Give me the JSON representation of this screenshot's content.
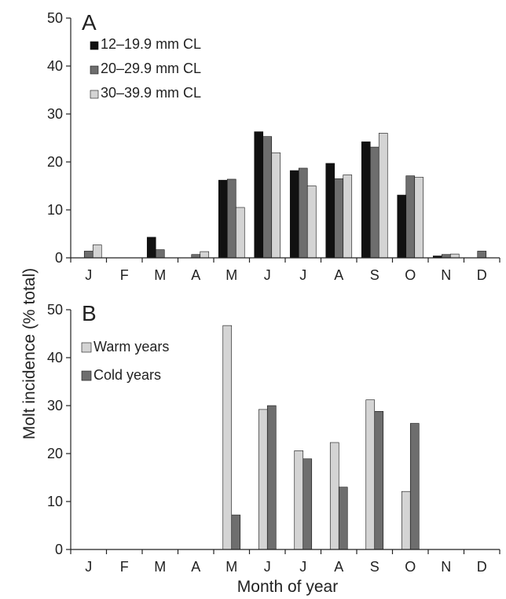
{
  "chart_data": [
    {
      "panel": "A",
      "type": "bar",
      "categories": [
        "J",
        "F",
        "M",
        "A",
        "M",
        "J",
        "J",
        "A",
        "S",
        "O",
        "N",
        "D"
      ],
      "yticks": [
        "0",
        "10",
        "20",
        "30",
        "40",
        "50"
      ],
      "ylim": [
        0,
        50
      ],
      "legend_position": "top-left",
      "grid": false,
      "series": [
        {
          "name": "12–19.9 mm CL",
          "color": "#111111",
          "values": [
            0,
            0,
            4.3,
            0,
            16.2,
            26.3,
            18.2,
            19.7,
            24.2,
            13.1,
            0.4,
            0
          ]
        },
        {
          "name": "20–29.9 mm CL",
          "color": "#6e6e6e",
          "values": [
            1.4,
            0,
            1.7,
            0.7,
            16.4,
            25.3,
            18.7,
            16.5,
            23.1,
            17.1,
            0.7,
            1.4
          ]
        },
        {
          "name": "30–39.9 mm CL",
          "color": "#d4d4d4",
          "values": [
            2.7,
            0,
            0,
            1.3,
            10.5,
            21.9,
            15.0,
            17.3,
            26.0,
            16.8,
            0.8,
            0
          ]
        }
      ]
    },
    {
      "panel": "B",
      "type": "bar",
      "categories": [
        "J",
        "F",
        "M",
        "A",
        "M",
        "J",
        "J",
        "A",
        "S",
        "O",
        "N",
        "D"
      ],
      "yticks": [
        "0",
        "10",
        "20",
        "30",
        "40",
        "50"
      ],
      "ylim": [
        0,
        50
      ],
      "legend_position": "top-left",
      "grid": false,
      "series": [
        {
          "name": "Warm years",
          "color": "#d4d4d4",
          "values": [
            0,
            0,
            0,
            0,
            46.7,
            29.2,
            20.6,
            22.3,
            31.2,
            12.1,
            0,
            0
          ]
        },
        {
          "name": "Cold years",
          "color": "#6e6e6e",
          "values": [
            0,
            0,
            0,
            0,
            7.2,
            30.0,
            18.9,
            13.0,
            28.8,
            26.3,
            0,
            0
          ]
        }
      ]
    }
  ],
  "ylabel": "Molt incidence (% total)",
  "xlabel": "Month of year"
}
